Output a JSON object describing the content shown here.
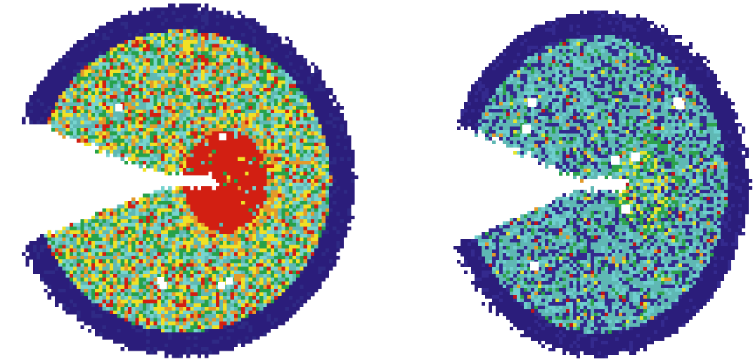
{
  "figure": {
    "panels": [
      {
        "id": "left",
        "palette": {
          "outline": "#2b1d7b",
          "low": "#2f2a85",
          "teal": "#5fb8b4",
          "cyan": "#78d4cf",
          "green": "#27a249",
          "yellow": "#f0e126",
          "orange": "#e39a2b",
          "red": "#d21f12"
        }
      },
      {
        "id": "right",
        "palette": {
          "outline": "#2b1d7b",
          "low": "#342a8e",
          "teal": "#5fb8b4",
          "cyan": "#6fcfcf",
          "green": "#2da24c",
          "yellow": "#e4e52f",
          "orange": "#e39a2b",
          "red": "#c1141a"
        }
      }
    ]
  }
}
